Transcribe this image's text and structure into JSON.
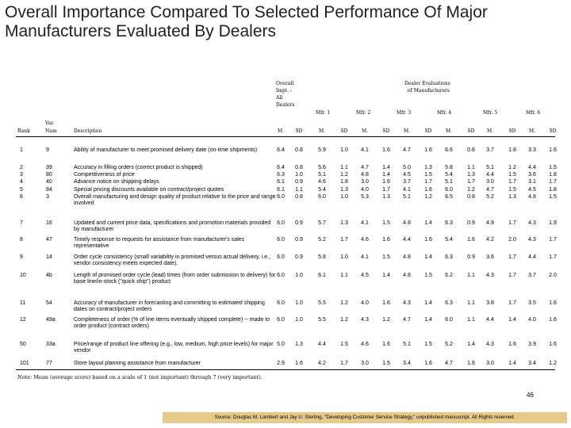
{
  "title": "Overall Importance Compared To Selected Performance Of Major Manufacturers Evaluated By Dealers",
  "header": {
    "overall": [
      "Overall",
      "Impt. -",
      "All",
      "Dealers"
    ],
    "evaluations": [
      "Dealer Evaluations",
      "of Manufacturers"
    ],
    "rank": "Rank",
    "var_num": [
      "Var.",
      "Num"
    ],
    "description": "Description",
    "manufacturers": [
      "Mfr. 1",
      "Mfr. 2",
      "Mfr. 3",
      "Mfr. 4",
      "Mfr. 5",
      "Mfr. 6"
    ],
    "m": "M.",
    "sd": "SD"
  },
  "rows": [
    {
      "rank": "1",
      "var": "9",
      "desc": "Ability of manufacturer to meet promised delivery date (on-time shipments)",
      "vals": [
        "6.4",
        "0.8",
        "5.9",
        "1.0",
        "4.1",
        "1.6",
        "4.7",
        "1.6",
        "6.6",
        "0.6",
        "3.7",
        "1.8",
        "3.3",
        "1.6"
      ]
    },
    {
      "rank": "2",
      "var": "39",
      "desc": "Accuracy in filling orders (correct product is shipped)",
      "vals": [
        "6.4",
        "0.8",
        "5.6",
        "1.1",
        "4.7",
        "1.4",
        "5.0",
        "1.3",
        "5.8",
        "1.1",
        "5.1",
        "1.2",
        "4.4",
        "1.5"
      ]
    },
    {
      "rank": "3",
      "var": "80",
      "desc": "Competitiveness of price",
      "vals": [
        "6.3",
        "1.0",
        "5.1",
        "1.2",
        "4.8",
        "1.4",
        "4.5",
        "1.5",
        "5.4",
        "1.3",
        "4.4",
        "1.5",
        "3.6",
        "1.8"
      ]
    },
    {
      "rank": "4",
      "var": "40",
      "desc": "Advance notice on shipping delays",
      "vals": [
        "6.1",
        "0.9",
        "4.6",
        "1.8",
        "3.0",
        "1.6",
        "3.7",
        "1.7",
        "5.1",
        "1.7",
        "3.0",
        "1.7",
        "3.1",
        "1.7"
      ]
    },
    {
      "rank": "5",
      "var": "84",
      "desc": "Special pricing discounts available on contract/project quotes",
      "vals": [
        "6.1",
        "1.1",
        "5.4",
        "1.3",
        "4.0",
        "1.7",
        "4.1",
        "1.6",
        "6.0",
        "1.2",
        "4.7",
        "1.5",
        "4.5",
        "1.8"
      ]
    },
    {
      "rank": "6",
      "var": "3",
      "desc": "Overall manufacturing and design quality of product relative to the price and range involved",
      "vals": [
        "6.0",
        "0.8",
        "6.0",
        "1.0",
        "5.3",
        "1.3",
        "5.1",
        "1.2",
        "6.5",
        "0.8",
        "5.2",
        "1.3",
        "4.8",
        "1.5"
      ]
    },
    {
      "rank": "7",
      "var": "16",
      "desc": "Updated and current price data, specifications and promotion materials provided by manufacturer",
      "vals": [
        "6.0",
        "0.9",
        "5.7",
        "1.3",
        "4.1",
        "1.5",
        "4.8",
        "1.4",
        "6.3",
        "0.9",
        "4.9",
        "1.7",
        "4.3",
        "1.9"
      ]
    },
    {
      "rank": "8",
      "var": "47",
      "desc": "Timely response to requests for assistance from manufacturer's sales representative",
      "vals": [
        "6.0",
        "0.9",
        "5.2",
        "1.7",
        "4.6",
        "1.6",
        "4.4",
        "1.6",
        "5.4",
        "1.6",
        "4.2",
        "2.0",
        "4.3",
        "1.7"
      ]
    },
    {
      "rank": "9",
      "var": "14",
      "desc": "Order cycle consistency (small variability in promised versus actual delivery, i.e., vendor consistency meets expected date).",
      "vals": [
        "6.0",
        "0.9",
        "5.8",
        "1.0",
        "4.1",
        "1.5",
        "4.8",
        "1.4",
        "6.3",
        "0.9",
        "3.6",
        "1.7",
        "4.4",
        "1.7"
      ]
    },
    {
      "rank": "10",
      "var": "4b",
      "desc": "Length of promised order cycle (lead) times (from order submission to delivery) for base line/in-stock (\"quick ship\") product",
      "vals": [
        "6.0",
        "1.0",
        "6.1",
        "1.1",
        "4.5",
        "1.4",
        "4.8",
        "1.5",
        "6.2",
        "1.1",
        "4.3",
        "1.7",
        "3.7",
        "2.0"
      ]
    },
    {
      "rank": "11",
      "var": "54",
      "desc": "Accuracy of manufacturer in forecasting and committing to estimated shipping dates on contract/project orders",
      "vals": [
        "6.0",
        "1.0",
        "5.5",
        "1.2",
        "4.0",
        "1.6",
        "4.3",
        "1.4",
        "6.3",
        "1.1",
        "3.8",
        "1.7",
        "3.5",
        "1.6"
      ]
    },
    {
      "rank": "12",
      "var": "49a",
      "desc": "Completeness of order (% of line items eventually shipped complete) -- made to order product (contract orders)",
      "vals": [
        "6.0",
        "1.0",
        "5.5",
        "1.2",
        "4.3",
        "1.2",
        "4.7",
        "1.4",
        "6.0",
        "1.1",
        "4.4",
        "1.4",
        "4.0",
        "1.6"
      ]
    },
    {
      "rank": "50",
      "var": "33a",
      "desc": "Price/range of product line offering (e.g., low, medium, high price levels) for major vendor",
      "vals": [
        "5.0",
        "1.3",
        "4.4",
        "1.5",
        "4.6",
        "1.6",
        "5.1",
        "1.5",
        "5.2",
        "1.4",
        "4.3",
        "1.6",
        "3.9",
        "1.6"
      ]
    },
    {
      "rank": "101",
      "var": "77",
      "desc": "Store layout planning assistance from manufacturer",
      "vals": [
        "2.9",
        "1.6",
        "4.2",
        "1.7",
        "3.0",
        "1.5",
        "3.4",
        "1.6",
        "4.7",
        "1.6",
        "3.0",
        "1.4",
        "3.4",
        "1.2"
      ]
    }
  ],
  "note_label": "Note:",
  "note": "Mean (average score) based on a scale of 1 (not important) through 7 (very important).",
  "page_number": "46",
  "source": "Source: Douglas M. Lambert and Jay U. Sterling, \"Developing Customer Service Strategy,\" unpublished manuscript. All Rights reserved."
}
